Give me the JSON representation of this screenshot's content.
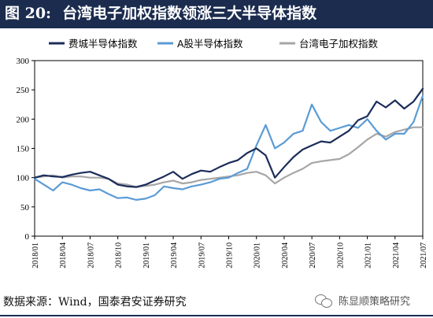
{
  "figure": {
    "label": "图 20:",
    "title": "台湾电子加权指数领涨三大半导体指数",
    "source": "数据来源：Wind，国泰君安证券研究",
    "watermark": "陈显顺策略研究",
    "watermark_icon": "wechat-icon"
  },
  "chart_data": {
    "type": "line",
    "title": "台湾电子加权指数领涨三大半导体指数",
    "xlabel": "",
    "ylabel": "",
    "ylim": [
      0,
      300
    ],
    "yticks": [
      0,
      50,
      100,
      150,
      200,
      250,
      300
    ],
    "xlim": [
      "2018-01",
      "2021-07"
    ],
    "xticks": [
      "2018/01",
      "2018/04",
      "2018/07",
      "2018/10",
      "2019/01",
      "2019/04",
      "2019/07",
      "2019/10",
      "2020/01",
      "2020/04",
      "2020/07",
      "2020/10",
      "2021/01",
      "2021/04",
      "2021/07"
    ],
    "grid": false,
    "legend": "top",
    "x": [
      "2018-01",
      "2018-02",
      "2018-03",
      "2018-04",
      "2018-05",
      "2018-06",
      "2018-07",
      "2018-08",
      "2018-09",
      "2018-10",
      "2018-11",
      "2018-12",
      "2019-01",
      "2019-02",
      "2019-03",
      "2019-04",
      "2019-05",
      "2019-06",
      "2019-07",
      "2019-08",
      "2019-09",
      "2019-10",
      "2019-11",
      "2019-12",
      "2020-01",
      "2020-02",
      "2020-03",
      "2020-04",
      "2020-05",
      "2020-06",
      "2020-07",
      "2020-08",
      "2020-09",
      "2020-10",
      "2020-11",
      "2020-12",
      "2021-01",
      "2021-02",
      "2021-03",
      "2021-04",
      "2021-05",
      "2021-06",
      "2021-07"
    ],
    "series": [
      {
        "name": "费城半导体指数",
        "color": "#1b2c5a",
        "values": [
          100,
          104,
          102,
          101,
          105,
          108,
          110,
          104,
          98,
          88,
          85,
          84,
          88,
          95,
          102,
          110,
          98,
          106,
          112,
          110,
          118,
          125,
          130,
          142,
          150,
          138,
          100,
          118,
          135,
          148,
          155,
          162,
          160,
          170,
          180,
          198,
          205,
          230,
          220,
          232,
          218,
          230,
          252
        ]
      },
      {
        "name": "A股半导体指数",
        "color": "#5b9bd5",
        "values": [
          98,
          88,
          78,
          92,
          88,
          82,
          78,
          80,
          72,
          65,
          66,
          62,
          64,
          70,
          85,
          82,
          80,
          85,
          88,
          92,
          98,
          100,
          108,
          115,
          155,
          190,
          150,
          160,
          175,
          180,
          225,
          195,
          180,
          185,
          190,
          185,
          200,
          180,
          165,
          175,
          175,
          195,
          240
        ]
      },
      {
        "name": "台湾电子加权指数",
        "color": "#a6a6a6",
        "values": [
          100,
          102,
          104,
          100,
          102,
          102,
          100,
          100,
          98,
          90,
          88,
          84,
          86,
          88,
          92,
          95,
          90,
          92,
          96,
          98,
          100,
          102,
          104,
          108,
          110,
          104,
          90,
          100,
          108,
          115,
          125,
          128,
          130,
          132,
          140,
          152,
          165,
          175,
          170,
          178,
          182,
          186,
          186
        ]
      }
    ]
  }
}
